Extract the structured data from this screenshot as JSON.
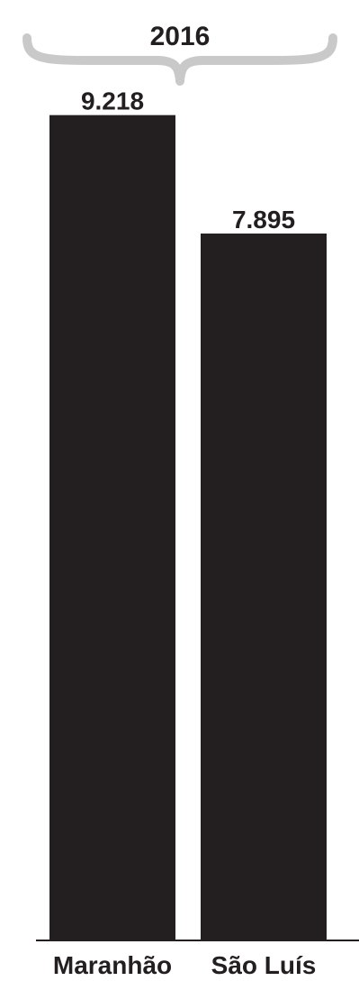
{
  "chart_data": {
    "type": "bar",
    "title": "2016",
    "categories": [
      "Maranhão",
      "São Luís"
    ],
    "values": [
      9218,
      7895
    ],
    "value_labels": [
      "9.218",
      "7.895"
    ],
    "ylim": [
      0,
      10000
    ],
    "grid": false,
    "legend": "none",
    "colors": {
      "bar": "#231f20",
      "text": "#231f20",
      "brace": "#c9c9c9",
      "baseline": "#231f20"
    }
  }
}
